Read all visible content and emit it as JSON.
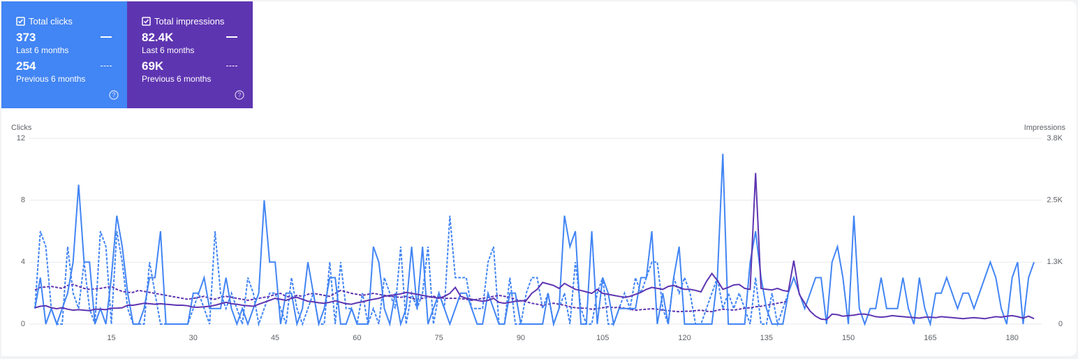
{
  "cards": [
    {
      "title": "Total clicks",
      "current": "373",
      "current_label": "Last 6 months",
      "previous": "254",
      "previous_label": "Previous 6 months"
    },
    {
      "title": "Total impressions",
      "current": "82.4K",
      "current_label": "Last 6 months",
      "previous": "69K",
      "previous_label": "Previous 6 months"
    }
  ],
  "chart_data": {
    "type": "line",
    "ylabel": "Clicks",
    "y2label": "Impressions",
    "x": [
      1,
      2,
      3,
      4,
      5,
      6,
      7,
      8,
      9,
      10,
      11,
      12,
      13,
      14,
      15,
      16,
      17,
      18,
      19,
      20,
      21,
      22,
      23,
      24,
      25,
      26,
      27,
      28,
      29,
      30,
      31,
      32,
      33,
      34,
      35,
      36,
      37,
      38,
      39,
      40,
      41,
      42,
      43,
      44,
      45,
      46,
      47,
      48,
      49,
      50,
      51,
      52,
      53,
      54,
      55,
      56,
      57,
      58,
      59,
      60,
      61,
      62,
      63,
      64,
      65,
      66,
      67,
      68,
      69,
      70,
      71,
      72,
      73,
      74,
      75,
      76,
      77,
      78,
      79,
      80,
      81,
      82,
      83,
      84,
      85,
      86,
      87,
      88,
      89,
      90,
      91,
      92,
      93,
      94,
      95,
      96,
      97,
      98,
      99,
      100,
      101,
      102,
      103,
      104,
      105,
      106,
      107,
      108,
      109,
      110,
      111,
      112,
      113,
      114,
      115,
      116,
      117,
      118,
      119,
      120,
      121,
      122,
      123,
      124,
      125,
      126,
      127,
      128,
      129,
      130,
      131,
      132,
      133,
      134,
      135,
      136,
      137,
      138,
      139,
      140,
      141,
      142,
      143,
      144,
      145,
      146,
      147,
      148,
      149,
      150,
      151,
      152,
      153,
      154,
      155,
      156,
      157,
      158,
      159,
      160,
      161,
      162,
      163,
      164,
      165,
      166,
      167,
      168,
      169,
      170,
      171,
      172,
      173,
      174,
      175,
      176,
      177,
      178,
      179,
      180,
      181,
      182,
      183,
      184
    ],
    "xlim": [
      1,
      184
    ],
    "xticks": [
      15,
      30,
      45,
      60,
      75,
      90,
      105,
      120,
      135,
      150,
      165,
      180
    ],
    "ylim": [
      0,
      12
    ],
    "yticks": [
      0,
      4,
      8,
      12
    ],
    "y2lim": [
      0,
      3750
    ],
    "y2ticks": [
      0,
      {
        "value": 1250,
        "label": "1.3K"
      },
      {
        "value": 2500,
        "label": "2.5K"
      },
      {
        "value": 3750,
        "label": "3.8K"
      }
    ],
    "grid": true,
    "series": [
      {
        "color": "#4285f4",
        "line_style": "solid",
        "values": [
          1,
          3,
          0,
          1,
          0,
          1,
          2,
          4,
          9,
          4,
          4,
          0,
          1,
          0,
          3,
          7,
          5,
          2,
          0,
          0,
          1,
          3,
          3,
          6,
          0,
          0,
          0,
          0,
          0,
          2,
          2,
          3,
          1,
          1,
          1,
          3,
          1,
          0,
          1,
          0,
          1,
          2,
          8,
          4,
          4,
          0,
          2,
          2,
          0,
          1,
          4,
          2,
          0,
          1,
          3,
          3,
          0,
          0,
          1,
          0,
          0,
          0,
          5,
          4,
          1,
          0,
          2,
          0,
          1,
          5,
          1,
          5,
          0,
          1,
          2,
          1,
          0,
          1,
          2,
          2,
          1,
          0,
          0,
          2,
          1,
          0,
          0,
          2,
          2,
          0,
          0,
          0,
          0,
          0,
          2,
          0,
          1,
          7,
          5,
          6,
          0,
          0,
          6,
          0,
          3,
          2,
          0,
          1,
          1,
          1,
          1,
          3,
          3,
          6,
          0,
          2,
          0,
          3,
          5,
          0,
          0,
          0,
          0,
          0,
          0,
          3,
          11,
          0,
          0,
          0,
          0,
          4,
          6,
          3,
          1,
          0,
          0,
          0,
          2,
          3,
          2,
          1,
          2,
          3,
          3,
          0,
          4,
          5,
          3,
          0,
          7,
          1,
          0,
          1,
          1,
          3,
          1,
          1,
          1,
          3,
          1,
          0,
          3,
          1,
          0,
          2,
          2,
          3,
          2,
          1,
          2,
          2,
          1,
          2,
          3,
          4,
          3,
          1,
          0,
          3,
          4,
          0,
          3,
          4
        ]
      },
      {
        "color": "#4285f4",
        "line_style": "dashed",
        "values": [
          1,
          6,
          5,
          1,
          0,
          0,
          5,
          2,
          1,
          4,
          1,
          0,
          6,
          5,
          0,
          6,
          4,
          1,
          0,
          0,
          0,
          4,
          2,
          0,
          0,
          0,
          0,
          0,
          0,
          1,
          2,
          1,
          0,
          6,
          2,
          1,
          2,
          1,
          0,
          3,
          2,
          0,
          1,
          2,
          2,
          1,
          0,
          3,
          1,
          0,
          1,
          2,
          0,
          0,
          4,
          0,
          4,
          1,
          1,
          0,
          2,
          0,
          1,
          0,
          3,
          2,
          1,
          5,
          0,
          2,
          1,
          2,
          5,
          0,
          2,
          1,
          7,
          3,
          3,
          3,
          1,
          1,
          1,
          4,
          5,
          0,
          0,
          3,
          0,
          0,
          2,
          3,
          3,
          1,
          2,
          0,
          1,
          2,
          0,
          4,
          1,
          0,
          0,
          2,
          3,
          0,
          0,
          1,
          2,
          1,
          3,
          2,
          3,
          4,
          4,
          1,
          0,
          3,
          2,
          3,
          2,
          0,
          0,
          1,
          2,
          3,
          1,
          2,
          1,
          2,
          1,
          0,
          3,
          0,
          0,
          2,
          0,
          1,
          2,
          null,
          null,
          null,
          null,
          null,
          null,
          null,
          null,
          null,
          null,
          null,
          null,
          null,
          null,
          null,
          null,
          null,
          null,
          null,
          null,
          null,
          null,
          null,
          null,
          null,
          null,
          null,
          null,
          null,
          null,
          null,
          null,
          null,
          null,
          null,
          null,
          null,
          null,
          null,
          null,
          null,
          null,
          null,
          null,
          null
        ]
      },
      {
        "color": "#5e35b1",
        "line_style": "solid",
        "axis": "y2",
        "values": [
          330,
          360,
          370,
          330,
          310,
          330,
          300,
          280,
          290,
          280,
          270,
          300,
          300,
          290,
          320,
          320,
          330,
          380,
          380,
          400,
          420,
          410,
          400,
          410,
          400,
          390,
          380,
          380,
          370,
          340,
          340,
          350,
          360,
          380,
          410,
          440,
          410,
          400,
          380,
          370,
          360,
          400,
          440,
          480,
          520,
          500,
          480,
          520,
          540,
          500,
          460,
          450,
          430,
          420,
          440,
          470,
          440,
          410,
          400,
          430,
          450,
          480,
          500,
          520,
          560,
          580,
          590,
          610,
          640,
          620,
          600,
          580,
          560,
          540,
          520,
          560,
          620,
          740,
          560,
          520,
          500,
          480,
          460,
          480,
          520,
          440,
          420,
          440,
          460,
          470,
          480,
          620,
          700,
          840,
          810,
          780,
          720,
          820,
          760,
          700,
          680,
          650,
          620,
          700,
          620,
          600,
          580,
          560,
          540,
          560,
          600,
          640,
          700,
          740,
          720,
          700,
          760,
          780,
          740,
          700,
          700,
          680,
          650,
          860,
          1020,
          880,
          700,
          740,
          790,
          800,
          720,
          700,
          3050,
          720,
          700,
          690,
          720,
          680,
          660,
          1280,
          600,
          420,
          260,
          160,
          100,
          90,
          200,
          190,
          160,
          170,
          180,
          200,
          200,
          180,
          150,
          140,
          150,
          170,
          160,
          150,
          140,
          130,
          120,
          140,
          140,
          130,
          150,
          140,
          130,
          120,
          110,
          120,
          130,
          120,
          110,
          130,
          150,
          140,
          160,
          170,
          150,
          120,
          160,
          110
        ]
      },
      {
        "color": "#5e35b1",
        "line_style": "dashed",
        "axis": "y2",
        "values": [
          690,
          740,
          750,
          760,
          740,
          720,
          780,
          800,
          760,
          720,
          700,
          710,
          720,
          740,
          760,
          700,
          660,
          640,
          640,
          680,
          660,
          640,
          620,
          600,
          580,
          560,
          540,
          520,
          500,
          520,
          540,
          560,
          520,
          500,
          540,
          560,
          540,
          520,
          500,
          480,
          500,
          520,
          540,
          560,
          600,
          620,
          560,
          540,
          580,
          560,
          600,
          620,
          600,
          580,
          560,
          620,
          680,
          650,
          620,
          600,
          580,
          600,
          620,
          600,
          580,
          560,
          550,
          540,
          560,
          520,
          500,
          520,
          540,
          560,
          540,
          520,
          520,
          520,
          510,
          500,
          480,
          500,
          520,
          540,
          560,
          580,
          560,
          540,
          500,
          470,
          450,
          420,
          400,
          380,
          400,
          420,
          400,
          380,
          350,
          330,
          320,
          320,
          300,
          310,
          330,
          350,
          330,
          340,
          320,
          300,
          280,
          290,
          300,
          310,
          300,
          280,
          270,
          260,
          250,
          260,
          260,
          270,
          280,
          260,
          250,
          280,
          300,
          290,
          280,
          300,
          320,
          330,
          350,
          360,
          380,
          400,
          420,
          440,
          470,
          null,
          null,
          null,
          null,
          null,
          null,
          null,
          null,
          null,
          null,
          null,
          null,
          null,
          null,
          null,
          null,
          null,
          null,
          null,
          null,
          null,
          null,
          null,
          null,
          null,
          null,
          null,
          null,
          null,
          null,
          null,
          null,
          null,
          null,
          null,
          null,
          null,
          null,
          null,
          null,
          null,
          null,
          null,
          null,
          null
        ]
      }
    ]
  }
}
